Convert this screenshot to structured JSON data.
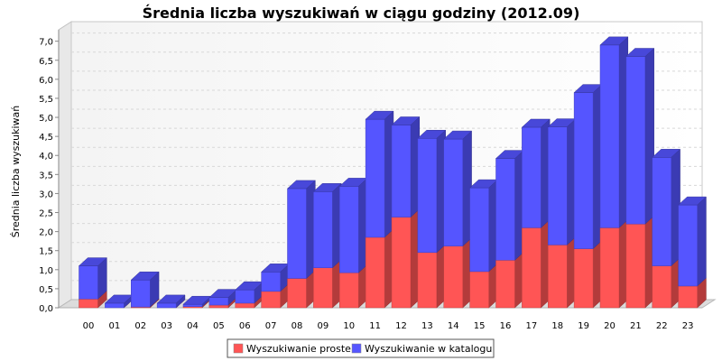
{
  "chart_data": {
    "type": "bar",
    "stacked": true,
    "three_d": true,
    "title": "Średnia liczba wyszukiwań w ciągu godziny (2012.09)",
    "xlabel": "",
    "ylabel": "Średnia liczba wyszukiwań",
    "ylim": [
      0,
      7.3
    ],
    "y_ticks": [
      "0,0",
      "0,5",
      "1,0",
      "1,5",
      "2,0",
      "2,5",
      "3,0",
      "3,5",
      "4,0",
      "4,5",
      "5,0",
      "5,5",
      "6,0",
      "6,5",
      "7,0"
    ],
    "grid": true,
    "legend_position": "bottom",
    "categories": [
      "00",
      "01",
      "02",
      "03",
      "04",
      "05",
      "06",
      "07",
      "08",
      "09",
      "10",
      "11",
      "12",
      "13",
      "14",
      "15",
      "16",
      "17",
      "18",
      "19",
      "20",
      "21",
      "22",
      "23"
    ],
    "series": [
      {
        "name": "Wyszukiwanie proste",
        "color": "#ff5555",
        "values": [
          0.23,
          0.0,
          0.02,
          0.0,
          0.03,
          0.07,
          0.12,
          0.43,
          0.77,
          1.05,
          0.92,
          1.85,
          2.38,
          1.45,
          1.62,
          0.95,
          1.25,
          2.1,
          1.65,
          1.55,
          2.1,
          2.2,
          1.1,
          0.57
        ]
      },
      {
        "name": "Wyszukiwanie w katalogu",
        "color": "#5555ff",
        "values": [
          0.87,
          0.12,
          0.71,
          0.12,
          0.06,
          0.2,
          0.35,
          0.51,
          2.36,
          2.0,
          2.27,
          3.1,
          2.42,
          3.0,
          2.81,
          2.2,
          2.67,
          2.64,
          3.1,
          4.1,
          4.8,
          4.4,
          2.85,
          2.13
        ]
      }
    ]
  }
}
